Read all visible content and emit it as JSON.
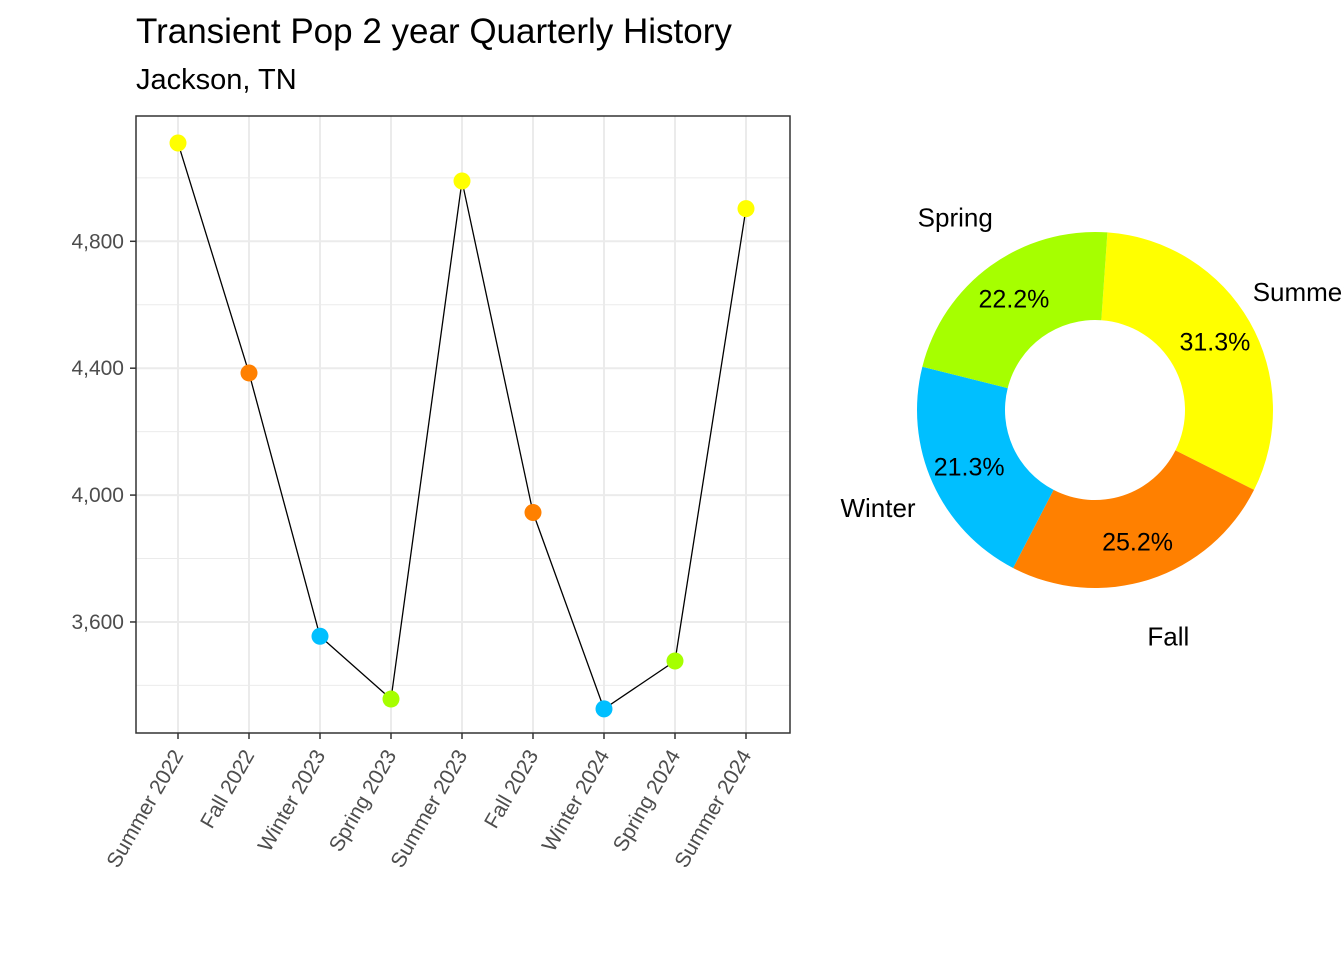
{
  "title": "Transient Pop 2 year Quarterly History",
  "subtitle": "Jackson, TN",
  "colors": {
    "Summer": "#FFFF00",
    "Fall": "#FF8000",
    "Winter": "#00BFFF",
    "Spring": "#A6FF00",
    "line": "#000000",
    "grid": "#EBEBEB",
    "panel_border": "#333333"
  },
  "chart_data": [
    {
      "type": "line",
      "categories": [
        "Summer 2022",
        "Fall 2022",
        "Winter 2023",
        "Spring 2023",
        "Summer 2023",
        "Fall 2023",
        "Winter 2024",
        "Spring 2024",
        "Summer 2024"
      ],
      "seasons": [
        "Summer",
        "Fall",
        "Winter",
        "Spring",
        "Summer",
        "Fall",
        "Winter",
        "Spring",
        "Summer"
      ],
      "values": [
        5110,
        4385,
        3555,
        3357,
        4990,
        3945,
        3326,
        3477,
        4903
      ],
      "ylim": [
        3250,
        5195
      ],
      "yticks": [
        3600,
        4000,
        4400,
        4800
      ],
      "ytick_labels": [
        "3,600",
        "4,000",
        "4,400",
        "4,800"
      ],
      "grid": true,
      "xlabel": "",
      "ylabel": ""
    },
    {
      "type": "pie",
      "donut": true,
      "slices": [
        {
          "label": "Summer",
          "value": 31.3,
          "pct_label": "31.3%"
        },
        {
          "label": "Fall",
          "value": 25.2,
          "pct_label": "25.2%"
        },
        {
          "label": "Winter",
          "value": 21.3,
          "pct_label": "21.3%"
        },
        {
          "label": "Spring",
          "value": 22.2,
          "pct_label": "22.2%"
        }
      ]
    }
  ]
}
